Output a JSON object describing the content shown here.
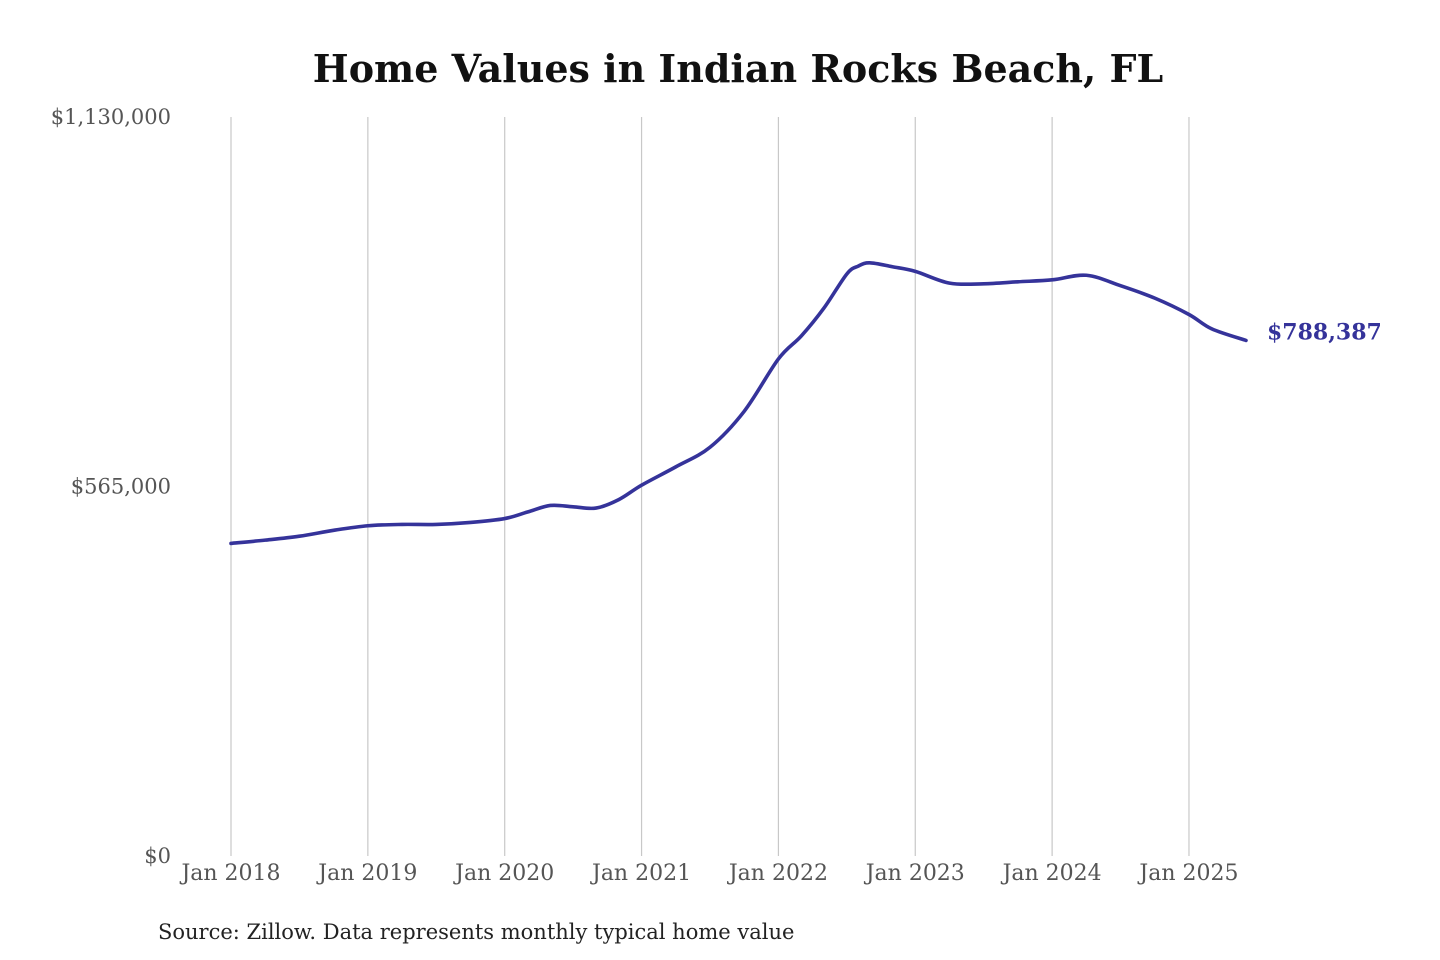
{
  "colors": {
    "series": "#35339a",
    "grid": "#c8c8c8",
    "tick_text": "#555555",
    "title_text": "#111111"
  },
  "source_note": "Source: Zillow. Data represents monthly typical home value",
  "chart_data": {
    "type": "line",
    "title": "Home Values in Indian Rocks Beach, FL",
    "xlabel": "",
    "ylabel": "",
    "ylim": [
      0,
      1130000
    ],
    "xlim": [
      "2018-01",
      "2025-06"
    ],
    "grid": {
      "vertical": true,
      "horizontal": false
    },
    "y_ticks": [
      {
        "value": 0,
        "label": "$0"
      },
      {
        "value": 565000,
        "label": "$565,000"
      },
      {
        "value": 1130000,
        "label": "$1,130,000"
      }
    ],
    "x_ticks": [
      {
        "date": "2018-01",
        "label": "Jan 2018"
      },
      {
        "date": "2019-01",
        "label": "Jan 2019"
      },
      {
        "date": "2020-01",
        "label": "Jan 2020"
      },
      {
        "date": "2021-01",
        "label": "Jan 2021"
      },
      {
        "date": "2022-01",
        "label": "Jan 2022"
      },
      {
        "date": "2023-01",
        "label": "Jan 2023"
      },
      {
        "date": "2024-01",
        "label": "Jan 2024"
      },
      {
        "date": "2025-01",
        "label": "Jan 2025"
      }
    ],
    "end_label": "$788,387",
    "series": [
      {
        "points": [
          {
            "x": "2018-01",
            "y": 478000
          },
          {
            "x": "2018-04",
            "y": 483000
          },
          {
            "x": "2018-07",
            "y": 489000
          },
          {
            "x": "2018-10",
            "y": 498000
          },
          {
            "x": "2019-01",
            "y": 505000
          },
          {
            "x": "2019-04",
            "y": 507000
          },
          {
            "x": "2019-07",
            "y": 507000
          },
          {
            "x": "2019-10",
            "y": 510000
          },
          {
            "x": "2020-01",
            "y": 516000
          },
          {
            "x": "2020-03",
            "y": 526000
          },
          {
            "x": "2020-05",
            "y": 536000
          },
          {
            "x": "2020-07",
            "y": 534000
          },
          {
            "x": "2020-09",
            "y": 532000
          },
          {
            "x": "2020-11",
            "y": 545000
          },
          {
            "x": "2021-01",
            "y": 567000
          },
          {
            "x": "2021-04",
            "y": 595000
          },
          {
            "x": "2021-07",
            "y": 625000
          },
          {
            "x": "2021-10",
            "y": 680000
          },
          {
            "x": "2022-01",
            "y": 760000
          },
          {
            "x": "2022-03",
            "y": 795000
          },
          {
            "x": "2022-05",
            "y": 838000
          },
          {
            "x": "2022-07",
            "y": 890000
          },
          {
            "x": "2022-08",
            "y": 902000
          },
          {
            "x": "2022-09",
            "y": 907000
          },
          {
            "x": "2022-11",
            "y": 901000
          },
          {
            "x": "2023-01",
            "y": 894000
          },
          {
            "x": "2023-04",
            "y": 876000
          },
          {
            "x": "2023-07",
            "y": 875000
          },
          {
            "x": "2023-10",
            "y": 878000
          },
          {
            "x": "2024-01",
            "y": 881000
          },
          {
            "x": "2024-04",
            "y": 888000
          },
          {
            "x": "2024-07",
            "y": 872000
          },
          {
            "x": "2024-10",
            "y": 853000
          },
          {
            "x": "2025-01",
            "y": 828000
          },
          {
            "x": "2025-03",
            "y": 806000
          },
          {
            "x": "2025-06",
            "y": 788387
          }
        ]
      }
    ]
  }
}
